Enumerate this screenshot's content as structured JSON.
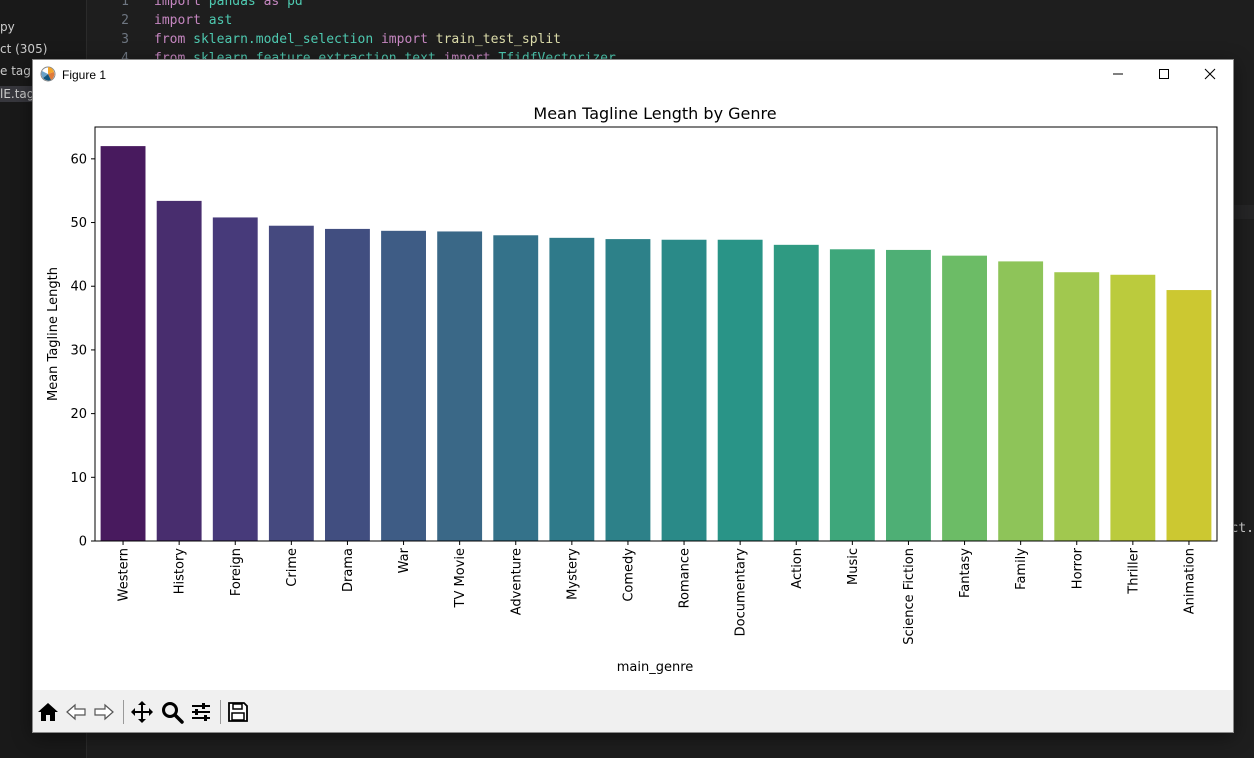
{
  "sidebar": {
    "items": [
      "py",
      "ct (305)",
      "e tagl",
      "lE.tag"
    ]
  },
  "editor": {
    "lines": [
      {
        "num": "1",
        "tokens": [
          {
            "t": "import",
            "c": "kw"
          },
          {
            "t": " "
          },
          {
            "t": "pandas",
            "c": "mod"
          },
          {
            "t": " "
          },
          {
            "t": "as",
            "c": "kw"
          },
          {
            "t": " "
          },
          {
            "t": "pd",
            "c": "mod"
          }
        ]
      },
      {
        "num": "2",
        "tokens": [
          {
            "t": "import",
            "c": "kw"
          },
          {
            "t": " "
          },
          {
            "t": "ast",
            "c": "mod"
          }
        ]
      },
      {
        "num": "3",
        "tokens": [
          {
            "t": "from",
            "c": "kw"
          },
          {
            "t": " "
          },
          {
            "t": "sklearn.model_selection",
            "c": "mod"
          },
          {
            "t": " "
          },
          {
            "t": "import",
            "c": "kw"
          },
          {
            "t": " "
          },
          {
            "t": "train_test_split",
            "c": "fn"
          }
        ]
      },
      {
        "num": "4",
        "tokens": [
          {
            "t": "from",
            "c": "kw"
          },
          {
            "t": " "
          },
          {
            "t": "sklearn.feature_extraction.text",
            "c": "mod"
          },
          {
            "t": " "
          },
          {
            "t": "import",
            "c": "kw"
          },
          {
            "t": " "
          },
          {
            "t": "TfidfVectorizer",
            "c": "mod"
          }
        ]
      }
    ],
    "edge_text": "ct."
  },
  "window": {
    "title": "Figure 1"
  },
  "toolbar": {
    "buttons": [
      "home-icon",
      "back-icon",
      "forward-icon",
      "pan-icon",
      "zoom-icon",
      "configure-subplots-icon",
      "save-icon"
    ]
  },
  "chart_data": {
    "type": "bar",
    "title": "Mean Tagline Length by Genre",
    "xlabel": "main_genre",
    "ylabel": "Mean Tagline Length",
    "categories": [
      "Western",
      "History",
      "Foreign",
      "Crime",
      "Drama",
      "War",
      "TV Movie",
      "Adventure",
      "Mystery",
      "Comedy",
      "Romance",
      "Documentary",
      "Action",
      "Music",
      "Science Fiction",
      "Fantasy",
      "Family",
      "Horror",
      "Thriller",
      "Animation"
    ],
    "values": [
      62.0,
      53.4,
      50.8,
      49.5,
      49.0,
      48.7,
      48.6,
      48.0,
      47.6,
      47.4,
      47.3,
      47.3,
      46.5,
      45.8,
      45.7,
      44.8,
      43.9,
      42.2,
      41.8,
      39.4
    ],
    "ylim": [
      0,
      65
    ],
    "yticks": [
      0,
      10,
      20,
      30,
      40,
      50,
      60
    ],
    "grid": false,
    "palette": "viridis",
    "colors": [
      "#481a5e",
      "#482d6e",
      "#473a7a",
      "#45497f",
      "#414e80",
      "#3e5c85",
      "#3a6887",
      "#34728a",
      "#2f7a8a",
      "#2d8189",
      "#2a8a88",
      "#299487",
      "#2f9a82",
      "#3ea77b",
      "#4eaf75",
      "#6cbc66",
      "#8ec459",
      "#a1c84f",
      "#bbcb3d",
      "#ccc831"
    ]
  }
}
